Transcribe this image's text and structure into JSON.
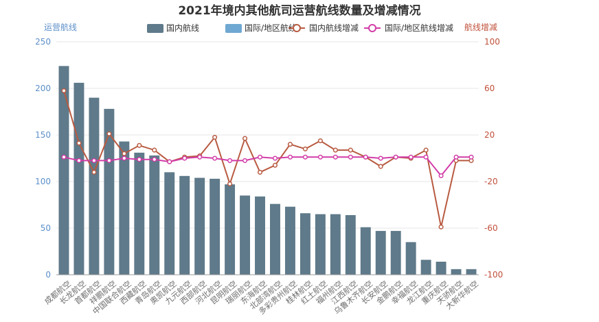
{
  "chart_data": {
    "type": "bar",
    "title": "2021年境内其他航司运营航线数量及增减情况",
    "ylabel": "运营航线",
    "y2label": "航线增减",
    "ylim": [
      0,
      250
    ],
    "y2lim": [
      -100,
      100
    ],
    "yticks": [
      0,
      50,
      100,
      150,
      200,
      250
    ],
    "y2ticks": [
      -100,
      -60,
      -20,
      20,
      60,
      100
    ],
    "grid": true,
    "legend_position": "top-right",
    "categories": [
      "成都航空",
      "长龙航空",
      "首都航空",
      "祥鹏航空",
      "中国联合航空",
      "西藏航空",
      "青岛航空",
      "奥凯航空",
      "九元航空",
      "西部航空",
      "河北航空",
      "昆明航空",
      "瑞丽航空",
      "东海航空",
      "北部湾航空",
      "多彩贵州航空",
      "桂林航空",
      "红土航空",
      "福州航空",
      "江西航空",
      "乌鲁木齐航空",
      "长安航空",
      "金鹏航空",
      "幸福航空",
      "龙江航空",
      "重庆航空",
      "天骄航空",
      "大新华航空"
    ],
    "series": [
      {
        "name": "国内航线",
        "type": "bar",
        "axis": "left",
        "color": "#5f7a8a",
        "values": [
          224,
          206,
          190,
          178,
          143,
          131,
          128,
          110,
          106,
          104,
          103,
          97,
          85,
          84,
          76,
          73,
          66,
          65,
          65,
          64,
          51,
          47,
          47,
          35,
          16,
          14,
          6,
          6
        ]
      },
      {
        "name": "国际/地区航线",
        "type": "bar",
        "axis": "left",
        "color": "#6fa8d2",
        "values": [
          0,
          0,
          0,
          0,
          0,
          0,
          0,
          0,
          0,
          0,
          0,
          0,
          0,
          0,
          0,
          0,
          0,
          0,
          0,
          0,
          0,
          0,
          0,
          0,
          0,
          0,
          0,
          0
        ]
      },
      {
        "name": "国内航线增减",
        "type": "line",
        "axis": "right",
        "color": "#b85a40",
        "values": [
          58,
          13,
          -12,
          21,
          4,
          11,
          7,
          -3,
          1,
          2,
          18,
          -22,
          17,
          -12,
          -6,
          12,
          8,
          15,
          7,
          7,
          1,
          -7,
          1,
          0,
          7,
          -59,
          -2,
          -2
        ]
      },
      {
        "name": "国际/地区航线增减",
        "type": "line",
        "axis": "right",
        "color": "#d23ca8",
        "values": [
          1,
          -2,
          -2,
          -2,
          0,
          -1,
          -1,
          -3,
          0,
          1,
          0,
          -2,
          -2,
          1,
          0,
          1,
          1,
          1,
          1,
          1,
          1,
          0,
          1,
          1,
          1,
          -15,
          1,
          1
        ]
      }
    ]
  }
}
